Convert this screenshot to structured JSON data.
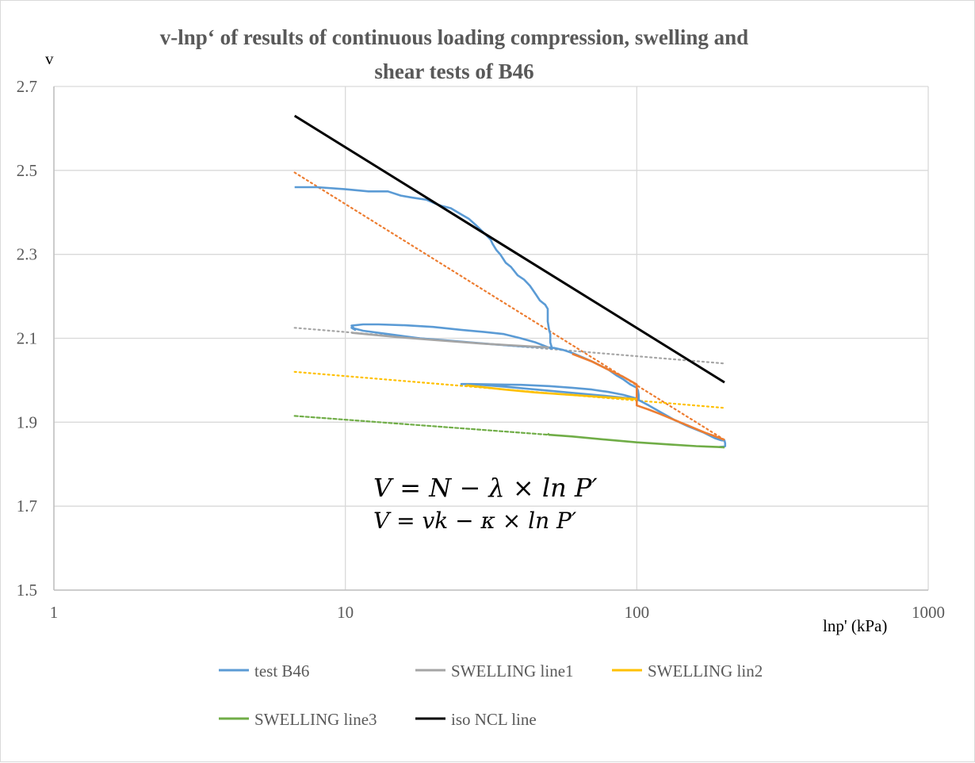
{
  "chart_data": {
    "type": "line",
    "title": "v-lnp‘ of results of continuous loading compression, swelling and shear tests of B46",
    "title_lines": [
      "v-lnp‘ of results of continuous loading compression, swelling and",
      "shear tests of B46"
    ],
    "xlabel": "lnp' (kPa)",
    "ylabel": "v",
    "x_scale": "log",
    "xlim": [
      1,
      1000
    ],
    "ylim": [
      1.5,
      2.7
    ],
    "x_ticks": [
      "1",
      "10",
      "100",
      "1000"
    ],
    "y_ticks": [
      "1.5",
      "1.7",
      "1.9",
      "2.1",
      "2.3",
      "2.5",
      "2.7"
    ],
    "grid": true,
    "legend_position": "bottom",
    "equations": [
      "V = N − λ × ln P′",
      "V = vk − κ × ln P′"
    ],
    "series": [
      {
        "name": "test B46",
        "color": "#5b9bd5",
        "legend": true,
        "x": [
          6.7,
          8.0,
          10.0,
          12.0,
          14.0,
          15.5,
          17.0,
          19.0,
          20.5,
          21.5,
          23.0,
          25.0,
          26.5,
          28.0,
          29.0,
          30.0,
          31.5,
          32.0,
          33.0,
          34.0,
          35.5,
          37.0,
          39.0,
          41.0,
          43.0,
          45.0,
          46.5,
          48.5,
          49.5,
          49.5,
          50.0,
          50.5,
          50.5,
          51.0,
          51.0,
          49.0,
          45.0,
          40.0,
          35.0,
          30.0,
          25.0,
          20.0,
          16.0,
          13.0,
          11.5,
          10.5,
          10.8,
          10.5,
          11.5,
          14.0,
          18.0,
          22.0,
          27.0,
          33.0,
          40.0,
          46.0,
          49.0,
          50.0,
          52.0,
          56.0,
          60.0,
          65.0,
          70.0,
          75.0,
          80.0,
          85.0,
          90.0,
          95.0,
          100.0,
          101.0,
          101.5,
          101.5,
          98.0,
          90.0,
          80.0,
          70.0,
          60.0,
          50.0,
          40.0,
          32.0,
          27.0,
          25.0,
          28.0,
          35.0,
          45.0,
          60.0,
          80.0,
          100.0,
          102.0,
          110.0,
          120.0,
          135.0,
          150.0,
          170.0,
          185.0,
          195.0,
          200.0,
          201.0,
          201.0,
          200.0,
          192.0
        ],
        "y": [
          2.46,
          2.46,
          2.455,
          2.45,
          2.45,
          2.44,
          2.435,
          2.43,
          2.42,
          2.415,
          2.41,
          2.395,
          2.385,
          2.37,
          2.36,
          2.35,
          2.335,
          2.325,
          2.31,
          2.3,
          2.28,
          2.27,
          2.25,
          2.24,
          2.225,
          2.205,
          2.19,
          2.18,
          2.17,
          2.14,
          2.12,
          2.11,
          2.09,
          2.08,
          2.075,
          2.08,
          2.09,
          2.1,
          2.11,
          2.115,
          2.12,
          2.127,
          2.131,
          2.133,
          2.133,
          2.13,
          2.12,
          2.125,
          2.118,
          2.11,
          2.1,
          2.095,
          2.09,
          2.085,
          2.081,
          2.079,
          2.078,
          2.078,
          2.077,
          2.072,
          2.065,
          2.055,
          2.045,
          2.035,
          2.025,
          2.012,
          2.002,
          1.99,
          1.982,
          1.975,
          1.965,
          1.955,
          1.958,
          1.965,
          1.972,
          1.978,
          1.982,
          1.986,
          1.989,
          1.99,
          1.991,
          1.991,
          1.99,
          1.985,
          1.978,
          1.97,
          1.962,
          1.955,
          1.952,
          1.94,
          1.925,
          1.905,
          1.89,
          1.875,
          1.862,
          1.857,
          1.856,
          1.85,
          1.843,
          1.842,
          1.841
        ]
      },
      {
        "name": "",
        "color": "#ed7d31",
        "legend": false,
        "x": [
          60.0,
          70.0,
          80.0,
          90.0,
          100.0,
          100.0,
          110.0,
          120.0,
          135.0,
          150.0,
          170.0,
          190.0,
          200.0
        ],
        "y": [
          2.063,
          2.045,
          2.025,
          2.008,
          1.99,
          1.94,
          1.93,
          1.92,
          1.905,
          1.892,
          1.876,
          1.864,
          1.858
        ]
      },
      {
        "name": "SWELLING line1",
        "color": "#a5a5a5",
        "legend": true,
        "x": [
          10.5,
          15.0,
          20.0,
          30.0,
          40.0,
          50.0
        ],
        "y": [
          2.113,
          2.103,
          2.096,
          2.087,
          2.082,
          2.078
        ]
      },
      {
        "name": "SWELLING lin2",
        "color": "#ffc000",
        "legend": true,
        "x": [
          26.0,
          35.0,
          45.0,
          60.0,
          80.0,
          100.0
        ],
        "y": [
          1.988,
          1.978,
          1.971,
          1.965,
          1.959,
          1.955
        ]
      },
      {
        "name": "SWELLING line3",
        "color": "#70ad47",
        "legend": true,
        "x": [
          49.5,
          50.0,
          60.0,
          80.0,
          100.0,
          130.0,
          160.0,
          190.0,
          200.0
        ],
        "y": [
          1.873,
          1.87,
          1.866,
          1.858,
          1.852,
          1.847,
          1.843,
          1.841,
          1.84
        ]
      },
      {
        "name": "iso NCL line",
        "color": "#000000",
        "legend": true,
        "x": [
          6.7,
          200.0
        ],
        "y": [
          2.63,
          1.995
        ]
      }
    ],
    "trendlines": [
      {
        "color": "#ed7d31",
        "x": [
          6.7,
          200.0
        ],
        "y": [
          2.495,
          1.858
        ]
      },
      {
        "color": "#a5a5a5",
        "x": [
          6.7,
          200.0
        ],
        "y": [
          2.125,
          2.04
        ]
      },
      {
        "color": "#ffc000",
        "x": [
          6.7,
          200.0
        ],
        "y": [
          2.02,
          1.934
        ]
      },
      {
        "color": "#70ad47",
        "x": [
          6.7,
          50.0
        ],
        "y": [
          1.915,
          1.87
        ]
      }
    ]
  }
}
